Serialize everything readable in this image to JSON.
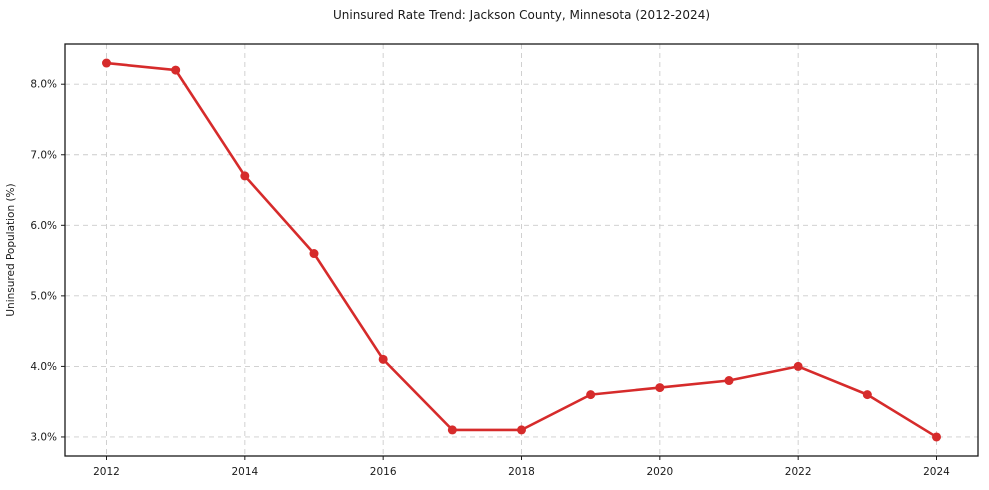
{
  "chart_data": {
    "type": "line",
    "title": "Uninsured Rate Trend: Jackson County, Minnesota (2012-2024)",
    "xlabel": "",
    "ylabel": "Uninsured Population (%)",
    "x": [
      2012,
      2013,
      2014,
      2015,
      2016,
      2017,
      2018,
      2019,
      2020,
      2021,
      2022,
      2023,
      2024
    ],
    "values": [
      8.3,
      8.2,
      6.7,
      5.6,
      4.1,
      3.1,
      3.1,
      3.6,
      3.7,
      3.8,
      4.0,
      3.6,
      3.0
    ],
    "xlim": [
      2011.4,
      2024.6
    ],
    "ylim": [
      2.73,
      8.57
    ],
    "xticks": {
      "values": [
        2012,
        2014,
        2016,
        2018,
        2020,
        2022,
        2024
      ],
      "labels": [
        "2012",
        "2014",
        "2016",
        "2018",
        "2020",
        "2022",
        "2024"
      ]
    },
    "yticks": {
      "values": [
        3,
        4,
        5,
        6,
        7,
        8
      ],
      "labels": [
        "3.0%",
        "4.0%",
        "5.0%",
        "6.0%",
        "7.0%",
        "8.0%"
      ]
    },
    "grid": true,
    "legend": false,
    "colors": {
      "line": "#d62b2b",
      "marker": "#d62b2b",
      "gridline": "#cccccc",
      "spine": "#1a1a1a",
      "text": "#1a1a1a",
      "background": "#ffffff"
    }
  }
}
